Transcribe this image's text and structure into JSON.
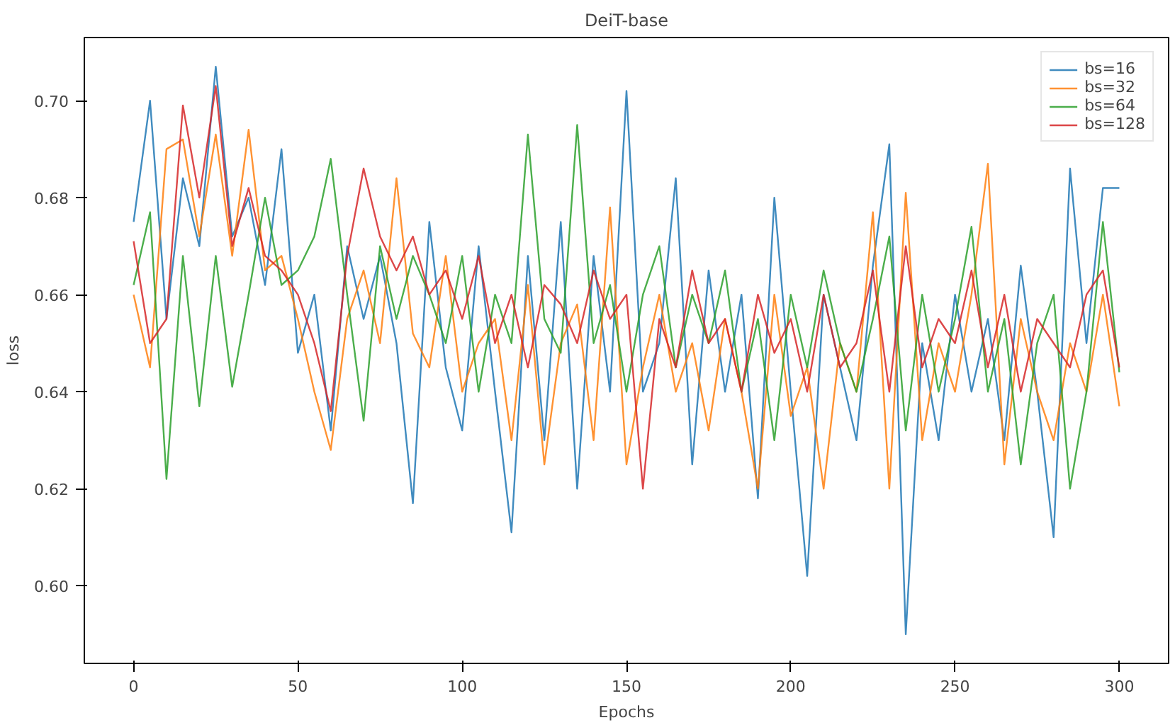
{
  "chart_data": {
    "type": "line",
    "title": "DeiT-base",
    "xlabel": "Epochs",
    "ylabel": "loss",
    "x": [
      0,
      5,
      10,
      15,
      20,
      25,
      30,
      35,
      40,
      45,
      50,
      55,
      60,
      65,
      70,
      75,
      80,
      85,
      90,
      95,
      100,
      105,
      110,
      115,
      120,
      125,
      130,
      135,
      140,
      145,
      150,
      155,
      160,
      165,
      170,
      175,
      180,
      185,
      190,
      195,
      200,
      205,
      210,
      215,
      220,
      225,
      230,
      235,
      240,
      245,
      250,
      255,
      260,
      265,
      270,
      275,
      280,
      285,
      290,
      295,
      300
    ],
    "series": [
      {
        "name": "bs=16",
        "color": "#1f77b4",
        "values": [
          0.675,
          0.7,
          0.655,
          0.684,
          0.67,
          0.707,
          0.672,
          0.68,
          0.662,
          0.69,
          0.648,
          0.66,
          0.632,
          0.67,
          0.655,
          0.668,
          0.65,
          0.617,
          0.675,
          0.645,
          0.632,
          0.67,
          0.64,
          0.611,
          0.668,
          0.63,
          0.675,
          0.62,
          0.668,
          0.64,
          0.702,
          0.64,
          0.65,
          0.684,
          0.625,
          0.665,
          0.64,
          0.66,
          0.618,
          0.68,
          0.64,
          0.602,
          0.66,
          0.645,
          0.63,
          0.666,
          0.691,
          0.59,
          0.65,
          0.63,
          0.66,
          0.64,
          0.655,
          0.63,
          0.666,
          0.64,
          0.61,
          0.686,
          0.65,
          0.682,
          0.682
        ]
      },
      {
        "name": "bs=32",
        "color": "#ff7f0e",
        "values": [
          0.66,
          0.645,
          0.69,
          0.692,
          0.672,
          0.693,
          0.668,
          0.694,
          0.665,
          0.668,
          0.655,
          0.64,
          0.628,
          0.655,
          0.665,
          0.65,
          0.684,
          0.652,
          0.645,
          0.668,
          0.64,
          0.65,
          0.655,
          0.63,
          0.662,
          0.625,
          0.65,
          0.658,
          0.63,
          0.678,
          0.625,
          0.645,
          0.66,
          0.64,
          0.65,
          0.632,
          0.655,
          0.64,
          0.62,
          0.66,
          0.635,
          0.645,
          0.62,
          0.65,
          0.64,
          0.677,
          0.62,
          0.681,
          0.63,
          0.65,
          0.64,
          0.66,
          0.687,
          0.625,
          0.655,
          0.64,
          0.63,
          0.65,
          0.64,
          0.66,
          0.637
        ]
      },
      {
        "name": "bs=64",
        "color": "#2ca02c",
        "values": [
          0.662,
          0.677,
          0.622,
          0.668,
          0.637,
          0.668,
          0.641,
          0.66,
          0.68,
          0.662,
          0.665,
          0.672,
          0.688,
          0.66,
          0.634,
          0.67,
          0.655,
          0.668,
          0.66,
          0.65,
          0.668,
          0.64,
          0.66,
          0.65,
          0.693,
          0.655,
          0.648,
          0.695,
          0.65,
          0.662,
          0.64,
          0.66,
          0.67,
          0.645,
          0.66,
          0.65,
          0.665,
          0.64,
          0.655,
          0.63,
          0.66,
          0.645,
          0.665,
          0.65,
          0.64,
          0.655,
          0.672,
          0.632,
          0.66,
          0.64,
          0.655,
          0.674,
          0.64,
          0.655,
          0.625,
          0.65,
          0.66,
          0.62,
          0.64,
          0.675,
          0.644
        ]
      },
      {
        "name": "bs=128",
        "color": "#d62728",
        "values": [
          0.671,
          0.65,
          0.655,
          0.699,
          0.68,
          0.703,
          0.67,
          0.682,
          0.668,
          0.665,
          0.66,
          0.65,
          0.636,
          0.668,
          0.686,
          0.672,
          0.665,
          0.672,
          0.66,
          0.665,
          0.655,
          0.668,
          0.65,
          0.66,
          0.645,
          0.662,
          0.658,
          0.65,
          0.665,
          0.655,
          0.66,
          0.62,
          0.655,
          0.645,
          0.665,
          0.65,
          0.655,
          0.64,
          0.66,
          0.648,
          0.655,
          0.64,
          0.66,
          0.645,
          0.65,
          0.665,
          0.64,
          0.67,
          0.645,
          0.655,
          0.65,
          0.665,
          0.645,
          0.66,
          0.64,
          0.655,
          0.65,
          0.645,
          0.66,
          0.665,
          0.645
        ]
      }
    ],
    "xlim": [
      -15,
      315
    ],
    "ylim": [
      0.584,
      0.713
    ],
    "xticks": [
      0,
      50,
      100,
      150,
      200,
      250,
      300
    ],
    "yticks": [
      {
        "value": 0.6,
        "label": "0.60"
      },
      {
        "value": 0.62,
        "label": "0.62"
      },
      {
        "value": 0.64,
        "label": "0.64"
      },
      {
        "value": 0.66,
        "label": "0.66"
      },
      {
        "value": 0.68,
        "label": "0.68"
      },
      {
        "value": 0.7,
        "label": "0.70"
      }
    ],
    "legend": "top right",
    "grid": false,
    "line_style": "solid",
    "marker": "none"
  }
}
